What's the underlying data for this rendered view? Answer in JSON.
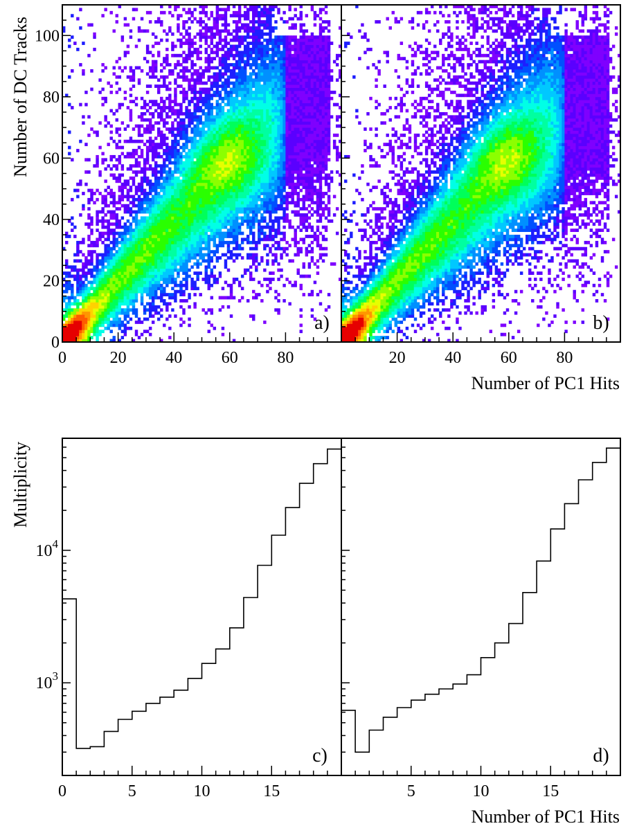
{
  "figure": {
    "colors": {
      "palette": [
        "#7f00ff",
        "#5a00ff",
        "#1e1eff",
        "#0050ff",
        "#0090ff",
        "#00c8ff",
        "#00ffe6",
        "#00ffa0",
        "#00ff5a",
        "#2aff00",
        "#8cff00",
        "#e6ff00",
        "#ffd200",
        "#ff9600",
        "#ff5a00",
        "#e60000"
      ]
    }
  },
  "chart_data": [
    {
      "type": "heatmap",
      "panel_label": "a)",
      "xlabel": "",
      "ylabel": "Number of DC Tracks",
      "xlim": [
        0,
        100
      ],
      "ylim": [
        0,
        110
      ],
      "x_ticks": [
        0,
        20,
        40,
        60,
        80
      ],
      "y_ticks": [
        0,
        20,
        40,
        60,
        80,
        100
      ],
      "x_tick_labels": [
        "0",
        "20",
        "40",
        "60",
        "80"
      ],
      "y_tick_labels": [
        "0",
        "20",
        "40",
        "60",
        "80",
        "100"
      ],
      "ridge": [
        [
          0,
          0
        ],
        [
          20,
          20
        ],
        [
          40,
          39
        ],
        [
          60,
          58
        ],
        [
          70,
          66
        ]
      ],
      "peak": [
        3,
        2
      ]
    },
    {
      "type": "heatmap",
      "panel_label": "b)",
      "xlabel": "Number of PC1 Hits",
      "ylabel": "",
      "xlim": [
        0,
        100
      ],
      "ylim": [
        0,
        110
      ],
      "x_ticks": [
        20,
        40,
        60,
        80
      ],
      "y_ticks": [
        0,
        20,
        40,
        60,
        80,
        100
      ],
      "x_tick_labels": [
        "20",
        "40",
        "60",
        "80"
      ],
      "y_tick_labels": [],
      "ridge": [
        [
          0,
          0
        ],
        [
          20,
          20
        ],
        [
          40,
          39
        ],
        [
          60,
          58
        ],
        [
          70,
          66
        ]
      ],
      "peak": [
        3,
        2
      ]
    },
    {
      "type": "bar",
      "panel_label": "c)",
      "xlabel": "",
      "ylabel": "Multiplicity",
      "log_y": true,
      "xlim": [
        0,
        20
      ],
      "ylim": [
        200,
        70000
      ],
      "x_ticks": [
        0,
        5,
        10,
        15
      ],
      "x_tick_labels": [
        "0",
        "5",
        "10",
        "15"
      ],
      "y_tick_values": [
        1000,
        10000
      ],
      "y_tick_labels": [
        {
          "base": "10",
          "exp": "3"
        },
        {
          "base": "10",
          "exp": "4"
        }
      ],
      "bin_edges": [
        0,
        1,
        2,
        3,
        4,
        5,
        6,
        7,
        8,
        9,
        10,
        11,
        12,
        13,
        14,
        15,
        16,
        17,
        18,
        19,
        20
      ],
      "values": [
        4300,
        320,
        330,
        430,
        530,
        610,
        700,
        780,
        880,
        1080,
        1400,
        1800,
        2600,
        4400,
        7700,
        13000,
        21000,
        32000,
        45000,
        58000
      ]
    },
    {
      "type": "bar",
      "panel_label": "d)",
      "xlabel": "Number of PC1 Hits",
      "ylabel": "",
      "log_y": true,
      "xlim": [
        0,
        20
      ],
      "ylim": [
        200,
        70000
      ],
      "x_ticks": [
        5,
        10,
        15
      ],
      "x_tick_labels": [
        "5",
        "10",
        "15"
      ],
      "y_tick_values": [
        1000,
        10000
      ],
      "y_tick_labels": [],
      "bin_edges": [
        0,
        1,
        2,
        3,
        4,
        5,
        6,
        7,
        8,
        9,
        10,
        11,
        12,
        13,
        14,
        15,
        16,
        17,
        18,
        19,
        20
      ],
      "values": [
        620,
        300,
        440,
        550,
        650,
        740,
        820,
        900,
        980,
        1150,
        1550,
        2000,
        2800,
        4800,
        8300,
        14500,
        22500,
        34000,
        46000,
        59000
      ]
    }
  ]
}
